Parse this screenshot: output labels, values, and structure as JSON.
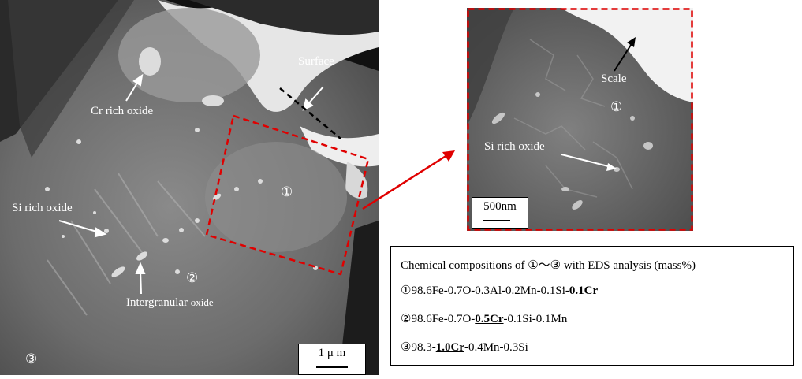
{
  "main_image": {
    "labels": {
      "surface": "Surface",
      "cr_oxide": "Cr rich oxide",
      "si_oxide": "Si rich oxide",
      "intergranular_main": "Intergranular",
      "intergranular_suffix": "oxide"
    },
    "markers": {
      "m1": "①",
      "m2": "②",
      "m3": "③"
    },
    "scale_bar": "1 μ m"
  },
  "inset_image": {
    "labels": {
      "scale": "Scale",
      "si_oxide": "Si rich oxide"
    },
    "marker": "①",
    "scale_bar": "500nm"
  },
  "info_box": {
    "title": "Chemical compositions of ①～③ with EDS analysis (mass%)",
    "row1": {
      "pre": "①98.6Fe-0.7O-0.3Al-0.2Mn-0.1Si-",
      "em": "0.1Cr",
      "post": ""
    },
    "row2": {
      "pre": "②98.6Fe-0.7O-",
      "em": "0.5Cr",
      "post": "-0.1Si-0.1Mn"
    },
    "row3": {
      "pre": "③98.3-",
      "em": "1.0Cr",
      "post": "-0.4Mn-0.3Si"
    }
  },
  "colors": {
    "highlight_box": "#e00000",
    "arrow_white": "#ffffff",
    "arrow_red": "#e00000"
  }
}
